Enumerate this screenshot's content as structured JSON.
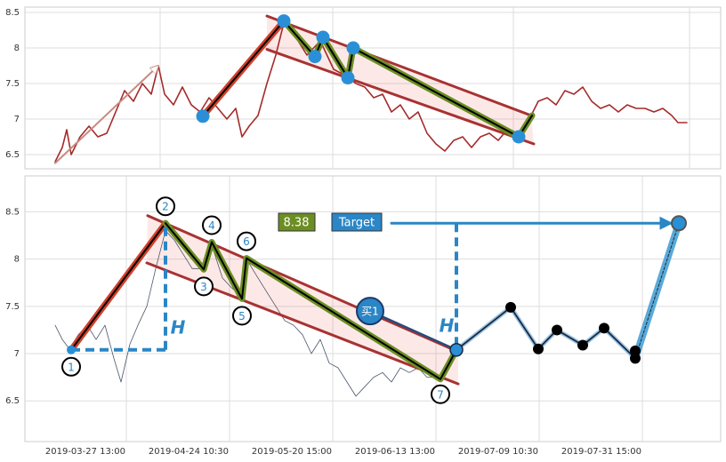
{
  "chart_data": [
    {
      "type": "line",
      "xlim": [
        0,
        782
      ],
      "ylim": [
        6.3,
        8.575
      ],
      "yticks": [
        6.5,
        7.0,
        7.5,
        8.0,
        8.5
      ],
      "xticks": [
        152,
        346,
        549,
        747
      ],
      "grid": true,
      "x": [
        34,
        42,
        47,
        52,
        62,
        72,
        82,
        92,
        102,
        112,
        122,
        132,
        142,
        150,
        157,
        167,
        177,
        187,
        197,
        207,
        217,
        227,
        237,
        244,
        252,
        262,
        272,
        282,
        291,
        302,
        317,
        332,
        347,
        362,
        372,
        382,
        392,
        402,
        412,
        422,
        432,
        442,
        452,
        462,
        472,
        482,
        492,
        502,
        512,
        522,
        532,
        542,
        555,
        567,
        577,
        587,
        597,
        607,
        617,
        627,
        637,
        647,
        657,
        667,
        677,
        687,
        697,
        707,
        717,
        727,
        734,
        744
      ],
      "series": [
        {
          "color": "#a52a2a",
          "values": [
            6.4,
            6.6,
            6.85,
            6.5,
            6.75,
            6.9,
            6.75,
            6.8,
            7.1,
            7.4,
            7.25,
            7.5,
            7.35,
            7.75,
            7.35,
            7.2,
            7.45,
            7.2,
            7.1,
            7.3,
            7.15,
            7.0,
            7.15,
            6.75,
            6.9,
            7.05,
            7.5,
            7.9,
            8.35,
            8.2,
            7.9,
            8.1,
            7.7,
            7.6,
            7.5,
            7.45,
            7.3,
            7.35,
            7.1,
            7.2,
            7.0,
            7.1,
            6.8,
            6.65,
            6.55,
            6.7,
            6.75,
            6.6,
            6.75,
            6.8,
            6.7,
            6.85,
            6.75,
            7.0,
            7.25,
            7.3,
            7.2,
            7.4,
            7.35,
            7.45,
            7.25,
            7.15,
            7.2,
            7.1,
            7.2,
            7.15,
            7.15,
            7.1,
            7.15,
            7.05,
            6.95,
            6.95
          ]
        }
      ],
      "overlays": [
        {
          "kind": "arrow",
          "color": "#c98a80",
          "x": [
            34,
            150
          ],
          "values": [
            6.38,
            7.75
          ]
        },
        {
          "kind": "channel",
          "color": "#a83232",
          "x": [
            272,
            569
          ],
          "values": [
            8.45,
            7.05
          ]
        },
        {
          "kind": "channel",
          "color": "#a83232",
          "x": [
            272,
            572
          ],
          "values": [
            7.98,
            6.65
          ]
        },
        {
          "kind": "leg",
          "color": "#d0402a",
          "x": [
            200,
            291
          ],
          "values": [
            7.04,
            8.38
          ]
        },
        {
          "kind": "zigzag",
          "color": "#6b8e23",
          "x": [
            291,
            326,
            335,
            363,
            369,
            555,
            570
          ],
          "values": [
            8.38,
            7.88,
            8.15,
            7.58,
            8.0,
            6.75,
            7.05
          ]
        }
      ],
      "points": {
        "color": "#2a8fd6",
        "x": [
          200,
          291,
          326,
          335,
          363,
          369,
          555
        ],
        "values": [
          7.04,
          8.38,
          7.88,
          8.15,
          7.58,
          8.0,
          6.75
        ]
      }
    },
    {
      "type": "line",
      "xlim": [
        0,
        782
      ],
      "ylim": [
        6.07,
        8.88
      ],
      "yticks": [
        6.5,
        7.0,
        7.5,
        8.0,
        8.5
      ],
      "grid": true,
      "xticks": [
        {
          "value": 114,
          "label": "2019-03-27 13:00"
        },
        {
          "value": 230,
          "label": "2019-04-24 10:30"
        },
        {
          "value": 346,
          "label": "2019-05-20 15:00"
        },
        {
          "value": 462,
          "label": "2019-06-13 13:00"
        },
        {
          "value": 578,
          "label": "2019-07-09 10:30"
        },
        {
          "value": 694,
          "label": "2019-07-31 15:00"
        }
      ],
      "x": [
        34,
        42,
        50,
        60,
        70,
        80,
        90,
        100,
        108,
        118,
        127,
        137,
        147,
        158,
        168,
        178,
        188,
        201,
        210,
        222,
        232,
        244,
        249,
        262,
        272,
        282,
        292,
        302,
        312,
        322,
        332,
        342,
        352,
        362,
        372,
        382,
        392,
        402,
        412,
        422,
        432,
        442,
        452,
        467,
        477,
        485
      ],
      "series": [
        {
          "color": "#4a5568",
          "values": [
            7.3,
            7.15,
            7.05,
            7.2,
            7.3,
            7.15,
            7.3,
            6.95,
            6.7,
            7.1,
            7.3,
            7.5,
            7.9,
            8.3,
            8.2,
            8.05,
            7.9,
            7.9,
            8.15,
            7.8,
            7.7,
            7.6,
            8.0,
            7.8,
            7.65,
            7.5,
            7.35,
            7.3,
            7.2,
            7.0,
            7.15,
            6.9,
            6.85,
            6.7,
            6.55,
            6.65,
            6.75,
            6.8,
            6.7,
            6.85,
            6.8,
            6.85,
            6.75,
            6.75,
            6.95,
            7.05
          ]
        }
      ],
      "overlays": [
        {
          "kind": "channel",
          "color": "#a83232",
          "x": [
            138,
            487
          ],
          "values": [
            8.46,
            7.02
          ]
        },
        {
          "kind": "channel",
          "color": "#a83232",
          "x": [
            137,
            487
          ],
          "values": [
            7.96,
            6.68
          ]
        },
        {
          "kind": "leg",
          "color": "#d0402a",
          "x": [
            52,
            158
          ],
          "values": [
            7.04,
            8.38
          ]
        },
        {
          "kind": "zigzag",
          "color": "#6b8e23",
          "x": [
            158,
            201,
            210,
            244,
            249,
            467,
            485
          ],
          "values": [
            8.38,
            7.89,
            8.18,
            7.58,
            8.01,
            6.73,
            7.04
          ]
        },
        {
          "kind": "dashed",
          "color": "#2a86c6",
          "x": [
            52,
            158
          ],
          "values": [
            7.04,
            7.04
          ]
        },
        {
          "kind": "dashed",
          "color": "#2a86c6",
          "x": [
            158,
            158
          ],
          "values": [
            7.04,
            8.38
          ]
        },
        {
          "kind": "dashed",
          "color": "#2a86c6",
          "x": [
            485,
            485
          ],
          "values": [
            8.38,
            7.04
          ]
        },
        {
          "kind": "buy",
          "color": "#2a4a7a",
          "x": [
            388,
            485
          ],
          "values": [
            7.45,
            7.04
          ]
        },
        {
          "kind": "target",
          "color": "#5aaad8",
          "x": [
            686,
            735
          ],
          "values": [
            6.95,
            8.38
          ]
        },
        {
          "kind": "forecast",
          "color": "#1a2a40",
          "x": [
            485,
            546,
            577,
            598,
            627,
            651,
            686,
            686
          ],
          "values": [
            7.04,
            7.49,
            7.05,
            7.25,
            7.09,
            7.27,
            6.95,
            7.03
          ]
        },
        {
          "kind": "arrow-blue",
          "color": "#2a86c6",
          "x": [
            412,
            727
          ],
          "values": [
            8.38,
            8.38
          ]
        }
      ],
      "points": {
        "color": "#2a8fd6",
        "labels": [
          "1",
          "2",
          "3",
          "4",
          "5",
          "6",
          "7"
        ],
        "x": [
          52,
          158,
          201,
          210,
          244,
          249,
          467
        ],
        "values": [
          7.04,
          8.38,
          7.89,
          8.18,
          7.58,
          8.01,
          6.73
        ]
      },
      "annotations": [
        "8.38",
        "Target",
        "买1",
        "H",
        "H"
      ]
    }
  ]
}
